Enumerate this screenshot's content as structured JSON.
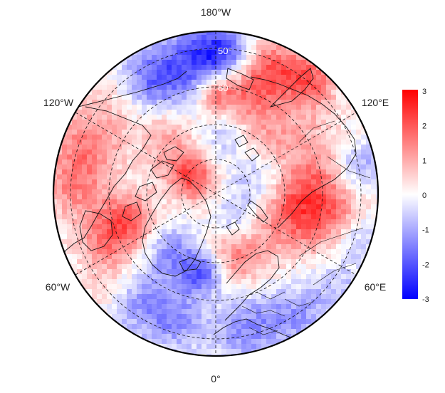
{
  "map": {
    "projection": "north polar stereographic",
    "longitude_labels": {
      "top": "180°W",
      "upper_left": "120°W",
      "upper_right": "120°E",
      "lower_left": "60°W",
      "lower_right": "60°E",
      "bottom": "0°"
    },
    "latitude_labels": [
      "50°",
      "60°"
    ],
    "graticule": "dashed"
  },
  "colorbar": {
    "ticks": [
      "3",
      "2",
      "1",
      "0",
      "-1",
      "-2",
      "-3"
    ],
    "min_color": "#0000ff",
    "mid_color": "#ffffff",
    "max_color": "#ff0000"
  }
}
